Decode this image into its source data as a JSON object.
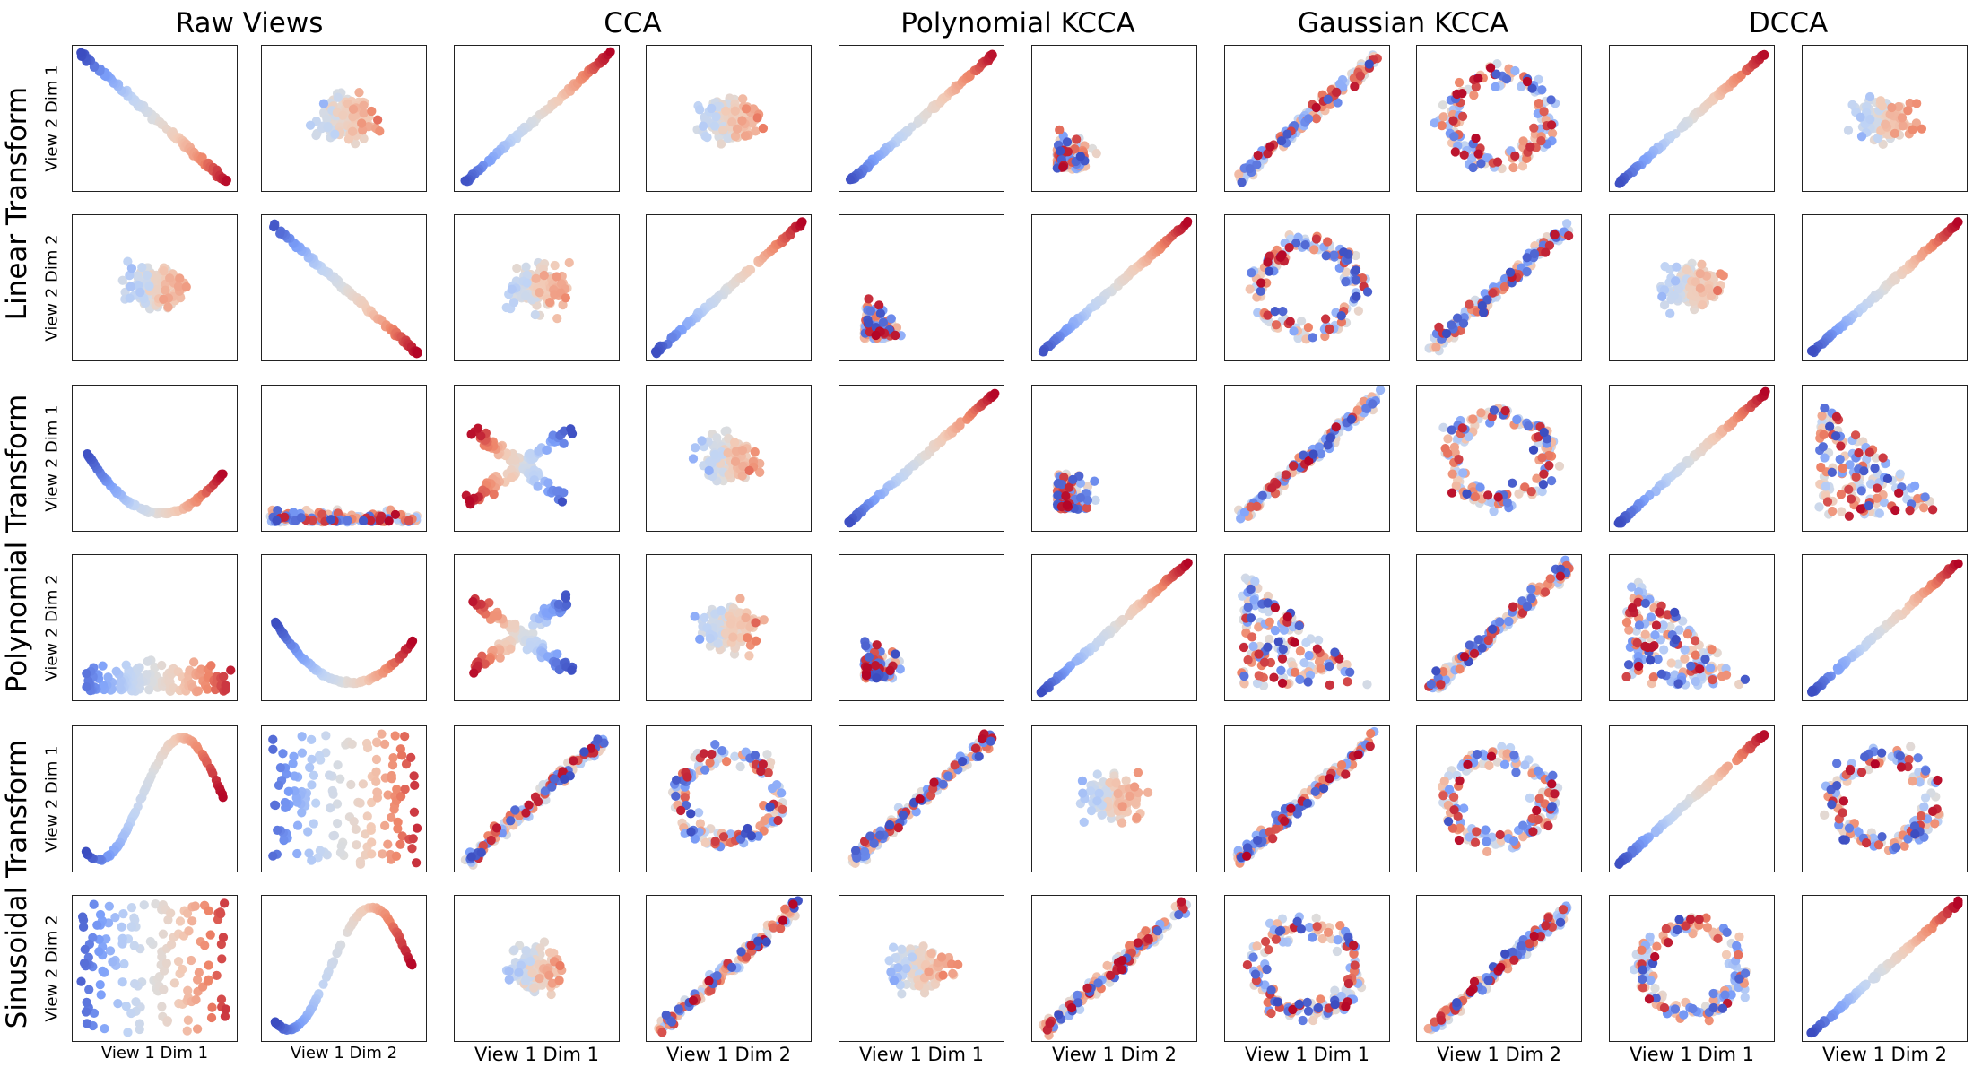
{
  "chart_data": {
    "type": "scatter",
    "column_groups": [
      {
        "title": "Raw Views"
      },
      {
        "title": "CCA"
      },
      {
        "title": "Polynomial KCCA"
      },
      {
        "title": "Gaussian KCCA"
      },
      {
        "title": "DCCA"
      }
    ],
    "row_groups": [
      {
        "title": "Linear Transform"
      },
      {
        "title": "Polynomial Transform"
      },
      {
        "title": "Sinusoidal Transform"
      }
    ],
    "row_ylabels": [
      "View 2 Dim 1",
      "View 2 Dim 2",
      "View 2 Dim 1",
      "View 2 Dim 2",
      "View 2 Dim 1",
      "View 2 Dim 2"
    ],
    "col_xlabels": [
      "View 1 Dim 1",
      "View 1 Dim 2",
      "View 1 Dim 1",
      "View 1 Dim 2",
      "View 1 Dim 1",
      "View 1 Dim 2",
      "View 1 Dim 1",
      "View 1 Dim 2",
      "View 1 Dim 1",
      "View 1 Dim 2"
    ],
    "colormap": "coolwarm",
    "colors": {
      "low": "#3b4cc0",
      "mid": "#dddddd",
      "high": "#b40426"
    },
    "grid": false,
    "ticks_shown": false,
    "panel_patterns": [
      [
        "line-neg",
        "blob",
        "line-pos",
        "blob",
        "line-pos",
        "corner-blob",
        "line-pos-spread",
        "ring",
        "line-pos",
        "blob"
      ],
      [
        "blob",
        "line-neg",
        "blob",
        "line-pos",
        "corner-blob",
        "line-pos",
        "ring",
        "line-pos-spread",
        "blob",
        "line-pos"
      ],
      [
        "parabola",
        "flat-band",
        "v-shape",
        "blob",
        "line-pos",
        "corner-blob",
        "line-pos-spread",
        "ring",
        "line-pos",
        "triangle"
      ],
      [
        "bottom-band",
        "parabola",
        "v-shape",
        "blob",
        "corner-blob",
        "line-pos",
        "triangle",
        "line-pos-spread",
        "triangle",
        "line-pos"
      ],
      [
        "sine",
        "vertical-band",
        "line-pos-spread",
        "ring",
        "line-pos-spread",
        "blob",
        "line-pos-spread",
        "ring",
        "line-pos",
        "ring"
      ],
      [
        "vertical-band",
        "sine",
        "blob",
        "line-pos-spread",
        "blob",
        "line-pos-spread",
        "ring",
        "line-pos-spread",
        "ring",
        "line-pos"
      ]
    ]
  }
}
